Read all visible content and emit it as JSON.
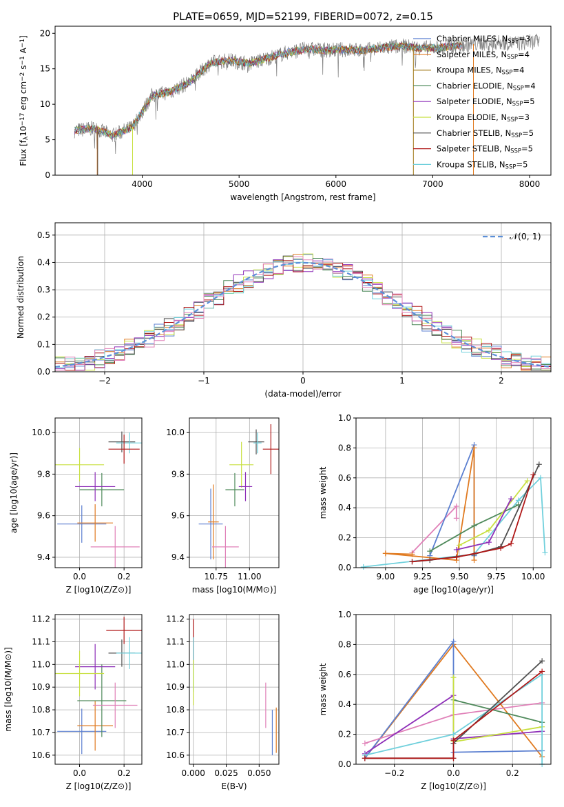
{
  "figure_title": "PLATE=0659, MJD=52199, FIBERID=0072, z=0.15",
  "colors": {
    "chabrier_miles": "#5b7fd0",
    "salpeter_miles": "#e07a20",
    "kroupa_miles": "#a07818",
    "chabrier_elodie": "#4f8a5b",
    "salpeter_elodie": "#8e2fb8",
    "kroupa_elodie": "#c8e040",
    "chabrier_stelib": "#505050",
    "salpeter_stelib": "#b01818",
    "kroupa_stelib": "#70d0dc",
    "pink": "#e080b8",
    "gaussian": "#5b8fd8",
    "data_gray": "#7f7f7f"
  },
  "chart_data": [
    {
      "id": "spectrum",
      "type": "line",
      "title": "PLATE=0659, MJD=52199, FIBERID=0072, z=0.15",
      "xlabel": "wavelength [Angstrom, rest frame]",
      "ylabel": "Flux [f_λ 10^-17 erg cm^-2 s^-1 A^-1]",
      "xlim": [
        3100,
        8220
      ],
      "ylim": [
        0,
        21
      ],
      "xticks": [
        "4000",
        "5000",
        "6000",
        "7000",
        "8000"
      ],
      "yticks": [
        "0",
        "5",
        "10",
        "15",
        "20"
      ],
      "legend": [
        "Chabrier MILES, N_SSP=3",
        "Salpeter MILES, N_SSP=4",
        "Kroupa MILES, N_SSP=4",
        "Chabrier ELODIE, N_SSP=4",
        "Salpeter ELODIE, N_SSP=5",
        "Kroupa ELODIE, N_SSP=3",
        "Chabrier STELIB, N_SSP=5",
        "Salpeter STELIB, N_SSP=5",
        "Kroupa STELIB, N_SSP=5"
      ],
      "legend_position": "top-right",
      "spectrum_x": [
        3300,
        3500,
        3700,
        3900,
        4100,
        4300,
        4500,
        4700,
        4900,
        5100,
        5300,
        5500,
        5700,
        5900,
        6100,
        6300,
        6500,
        6700,
        6900,
        7100,
        7300,
        7500,
        7700,
        7900,
        8100
      ],
      "spectrum_y": [
        6.3,
        6.6,
        5.6,
        6.8,
        11.2,
        11.8,
        13.2,
        15.8,
        16.2,
        15.7,
        16.5,
        17.3,
        17.8,
        17.6,
        17.7,
        17.6,
        18.0,
        18.2,
        17.9,
        18.0,
        18.3,
        18.6,
        18.7,
        18.6,
        18.9
      ]
    },
    {
      "id": "residuals",
      "type": "histogram",
      "xlabel": "(data-model)/error",
      "ylabel": "Normed distribution",
      "xlim": [
        -2.5,
        2.5
      ],
      "ylim": [
        0,
        0.545
      ],
      "xticks": [
        "−2",
        "−1",
        "0",
        "1",
        "2"
      ],
      "yticks": [
        "0.0",
        "0.1",
        "0.2",
        "0.3",
        "0.4",
        "0.5"
      ],
      "grid": true,
      "legend": [
        "N(0,1)"
      ],
      "legend_position": "top-right",
      "bin_width": 0.1
    },
    {
      "id": "age_vs_Z",
      "type": "errorbar",
      "xlabel": "Z [log10(Z/Z⊙)]",
      "ylabel": "age  [log10(age/yr)]",
      "xlim": [
        -0.11,
        0.28
      ],
      "ylim": [
        9.35,
        10.07
      ],
      "xticks": [
        "0.0",
        "0.2"
      ],
      "yticks": [
        "9.4",
        "9.6",
        "9.8",
        "10.0"
      ],
      "grid": true,
      "points": [
        {
          "c": "chabrier_miles",
          "x": 0.01,
          "y": 9.56,
          "ex": 0.11,
          "ey": 0.09
        },
        {
          "c": "salpeter_miles",
          "x": 0.07,
          "y": 9.565,
          "ex": 0.08,
          "ey": 0.09
        },
        {
          "c": "chabrier_elodie",
          "x": 0.1,
          "y": 9.725,
          "ex": 0.1,
          "ey": 0.08
        },
        {
          "c": "salpeter_elodie",
          "x": 0.07,
          "y": 9.74,
          "ex": 0.09,
          "ey": 0.07
        },
        {
          "c": "kroupa_elodie",
          "x": 0,
          "y": 9.845,
          "ex": 0.11,
          "ey": 0.08
        },
        {
          "c": "pink",
          "x": 0.16,
          "y": 9.45,
          "ex": 0.11,
          "ey": 0.1
        },
        {
          "c": "chabrier_stelib",
          "x": 0.19,
          "y": 9.955,
          "ex": 0.06,
          "ey": 0.05
        },
        {
          "c": "kroupa_stelib",
          "x": 0.225,
          "y": 9.95,
          "ex": 0.06,
          "ey": 0.05
        },
        {
          "c": "salpeter_stelib",
          "x": 0.2,
          "y": 9.92,
          "ex": 0.07,
          "ey": 0.07
        }
      ]
    },
    {
      "id": "age_vs_mass",
      "type": "errorbar",
      "xlabel": "mass [log10(M/M⊙)]",
      "ylabel": "",
      "xlim": [
        10.55,
        11.22
      ],
      "ylim": [
        9.35,
        10.07
      ],
      "xticks": [
        "10.75",
        "11.00"
      ],
      "yticks": [
        "9.4",
        "9.6",
        "9.8",
        "10.0"
      ],
      "grid": true,
      "points": [
        {
          "c": "chabrier_miles",
          "x": 10.71,
          "y": 9.56,
          "ex": 0.09,
          "ey": 0.17
        },
        {
          "c": "salpeter_miles",
          "x": 10.73,
          "y": 9.57,
          "ex": 0.04,
          "ey": 0.18
        },
        {
          "c": "pink",
          "x": 10.82,
          "y": 9.45,
          "ex": 0.1,
          "ey": 0.1
        },
        {
          "c": "chabrier_elodie",
          "x": 10.89,
          "y": 9.725,
          "ex": 0.07,
          "ey": 0.08
        },
        {
          "c": "kroupa_elodie",
          "x": 10.94,
          "y": 9.845,
          "ex": 0.09,
          "ey": 0.11
        },
        {
          "c": "salpeter_elodie",
          "x": 10.97,
          "y": 9.74,
          "ex": 0.05,
          "ey": 0.07
        },
        {
          "c": "chabrier_stelib",
          "x": 11.05,
          "y": 9.955,
          "ex": 0.06,
          "ey": 0.06
        },
        {
          "c": "kroupa_stelib",
          "x": 11.06,
          "y": 9.95,
          "ex": 0.03,
          "ey": 0.05
        },
        {
          "c": "salpeter_stelib",
          "x": 11.16,
          "y": 9.92,
          "ex": 0.06,
          "ey": 0.12
        }
      ]
    },
    {
      "id": "weight_vs_age",
      "type": "line",
      "xlabel": "age  [log10(age/yr)]",
      "ylabel": "mass weight",
      "xlim": [
        8.8,
        10.12
      ],
      "ylim": [
        0,
        1.0
      ],
      "xticks": [
        "9.00",
        "9.25",
        "9.50",
        "9.75",
        "10.00"
      ],
      "yticks": [
        "0.0",
        "0.2",
        "0.4",
        "0.6",
        "0.8",
        "1.0"
      ],
      "grid": true,
      "series": [
        {
          "c": "kroupa_stelib",
          "x": [
            8.85,
            9.6,
            9.9,
            10.05,
            10.08
          ],
          "y": [
            0.005,
            0.09,
            0.45,
            0.6,
            0.1
          ]
        },
        {
          "c": "pink",
          "x": [
            9.18,
            9.48,
            9.48
          ],
          "y": [
            0.1,
            0.41,
            0.33
          ]
        },
        {
          "c": "chabrier_miles",
          "x": [
            9.3,
            9.6,
            9.6
          ],
          "y": [
            0.08,
            0.82,
            0.08
          ]
        },
        {
          "c": "salpeter_miles",
          "x": [
            9.0,
            9.48,
            9.6,
            9.6
          ],
          "y": [
            0.095,
            0.05,
            0.8,
            0.05
          ]
        },
        {
          "c": "chabrier_elodie",
          "x": [
            9.3,
            9.6,
            9.9
          ],
          "y": [
            0.11,
            0.28,
            0.42
          ]
        },
        {
          "c": "kroupa_elodie",
          "x": [
            9.5,
            9.7,
            9.96
          ],
          "y": [
            0.15,
            0.25,
            0.58
          ]
        },
        {
          "c": "salpeter_elodie",
          "x": [
            9.48,
            9.7,
            9.85
          ],
          "y": [
            0.12,
            0.17,
            0.46
          ]
        },
        {
          "c": "chabrier_stelib",
          "x": [
            9.18,
            9.3,
            9.6,
            9.78,
            10.04
          ],
          "y": [
            0.04,
            0.05,
            0.09,
            0.14,
            0.69
          ]
        },
        {
          "c": "salpeter_stelib",
          "x": [
            9.18,
            9.48,
            9.78,
            9.85,
            10.0
          ],
          "y": [
            0.04,
            0.07,
            0.13,
            0.16,
            0.62
          ]
        },
        {
          "c": "salpeter_miles",
          "x": [
            9.0,
            9.18
          ],
          "y": [
            0.095,
            0.09
          ]
        }
      ]
    },
    {
      "id": "mass_vs_Z",
      "type": "errorbar",
      "xlabel": "Z [log10(Z/Z⊙)]",
      "ylabel": "mass [log10(M/M⊙)]",
      "xlim": [
        -0.11,
        0.28
      ],
      "ylim": [
        10.56,
        11.22
      ],
      "xticks": [
        "0.0",
        "0.2"
      ],
      "yticks": [
        "10.6",
        "10.7",
        "10.8",
        "10.9",
        "11.0",
        "11.1",
        "11.2"
      ],
      "grid": true,
      "points": [
        {
          "c": "chabrier_miles",
          "x": 0.01,
          "y": 10.705,
          "ex": 0.11,
          "ey": 0.1
        },
        {
          "c": "salpeter_miles",
          "x": 0.07,
          "y": 10.73,
          "ex": 0.08,
          "ey": 0.11
        },
        {
          "c": "chabrier_elodie",
          "x": 0.1,
          "y": 10.84,
          "ex": 0.11,
          "ey": 0.16
        },
        {
          "c": "salpeter_elodie",
          "x": 0.07,
          "y": 10.99,
          "ex": 0.09,
          "ey": 0.1
        },
        {
          "c": "kroupa_elodie",
          "x": 0,
          "y": 10.96,
          "ex": 0.11,
          "ey": 0.1
        },
        {
          "c": "pink",
          "x": 0.16,
          "y": 10.82,
          "ex": 0.1,
          "ey": 0.1
        },
        {
          "c": "chabrier_stelib",
          "x": 0.19,
          "y": 11.05,
          "ex": 0.06,
          "ey": 0.06
        },
        {
          "c": "kroupa_stelib",
          "x": 0.225,
          "y": 11.05,
          "ex": 0.06,
          "ey": 0.07
        },
        {
          "c": "salpeter_stelib",
          "x": 0.2,
          "y": 11.15,
          "ex": 0.08,
          "ey": 0.06
        }
      ]
    },
    {
      "id": "mass_vs_EBV",
      "type": "errorbar",
      "xlabel": "E(B-V)",
      "ylabel": "",
      "xlim": [
        -0.003,
        0.065
      ],
      "ylim": [
        10.56,
        11.22
      ],
      "xticks": [
        "0.000",
        "0.025",
        "0.050"
      ],
      "yticks": [
        "10.6",
        "10.7",
        "10.8",
        "10.9",
        "11.0",
        "11.1",
        "11.2"
      ],
      "grid": true,
      "points": [
        {
          "c": "salpeter_stelib",
          "x": 0.0,
          "y": 11.1,
          "ex": 0,
          "ey": 0.1
        },
        {
          "c": "kroupa_stelib",
          "x": 0.0,
          "y": 11.0,
          "ex": 0,
          "ey": 0.12
        },
        {
          "c": "kroupa_elodie",
          "x": 0.0,
          "y": 10.92,
          "ex": 0,
          "ey": 0.1
        },
        {
          "c": "pink",
          "x": 0.055,
          "y": 10.82,
          "ex": 0,
          "ey": 0.1
        },
        {
          "c": "chabrier_miles",
          "x": 0.06,
          "y": 10.7,
          "ex": 0,
          "ey": 0.1
        },
        {
          "c": "salpeter_miles",
          "x": 0.063,
          "y": 10.71,
          "ex": 0,
          "ey": 0.1
        }
      ]
    },
    {
      "id": "weight_vs_Z",
      "type": "line",
      "xlabel": "Z [log10(Z/Z⊙)]",
      "ylabel": "mass weight",
      "xlim": [
        -0.33,
        0.33
      ],
      "ylim": [
        0,
        1.0
      ],
      "xticks": [
        "−0.2",
        "0.0",
        "0.2"
      ],
      "yticks": [
        "0.0",
        "0.2",
        "0.4",
        "0.6",
        "0.8",
        "1.0"
      ],
      "grid": true,
      "series": [
        {
          "c": "salpeter_miles",
          "x": [
            -0.3,
            0.0,
            0.3
          ],
          "y": [
            0.04,
            0.8,
            0.05
          ]
        },
        {
          "c": "chabrier_miles",
          "x": [
            -0.3,
            0.0,
            0.0,
            0.3
          ],
          "y": [
            0.04,
            0.82,
            0.08,
            0.09
          ]
        },
        {
          "c": "pink",
          "x": [
            -0.3,
            0.0,
            0.3
          ],
          "y": [
            0.14,
            0.33,
            0.41
          ]
        },
        {
          "c": "salpeter_elodie",
          "x": [
            -0.3,
            0.0,
            0.0,
            0.3
          ],
          "y": [
            0.07,
            0.46,
            0.17,
            0.22
          ]
        },
        {
          "c": "chabrier_elodie",
          "x": [
            0.0,
            0.3
          ],
          "y": [
            0.43,
            0.28
          ]
        },
        {
          "c": "kroupa_elodie",
          "x": [
            0.0,
            0.0,
            0.3
          ],
          "y": [
            0.58,
            0.15,
            0.25
          ]
        },
        {
          "c": "kroupa_stelib",
          "x": [
            -0.3,
            0.0,
            0.3,
            0.3
          ],
          "y": [
            0.06,
            0.2,
            0.6,
            0.0
          ]
        },
        {
          "c": "chabrier_stelib",
          "x": [
            -0.3,
            0.0,
            0.0,
            0.3
          ],
          "y": [
            0.04,
            0.04,
            0.14,
            0.69
          ]
        },
        {
          "c": "salpeter_stelib",
          "x": [
            -0.3,
            0.0,
            0.0,
            0.3
          ],
          "y": [
            0.04,
            0.04,
            0.16,
            0.62
          ]
        }
      ]
    }
  ]
}
